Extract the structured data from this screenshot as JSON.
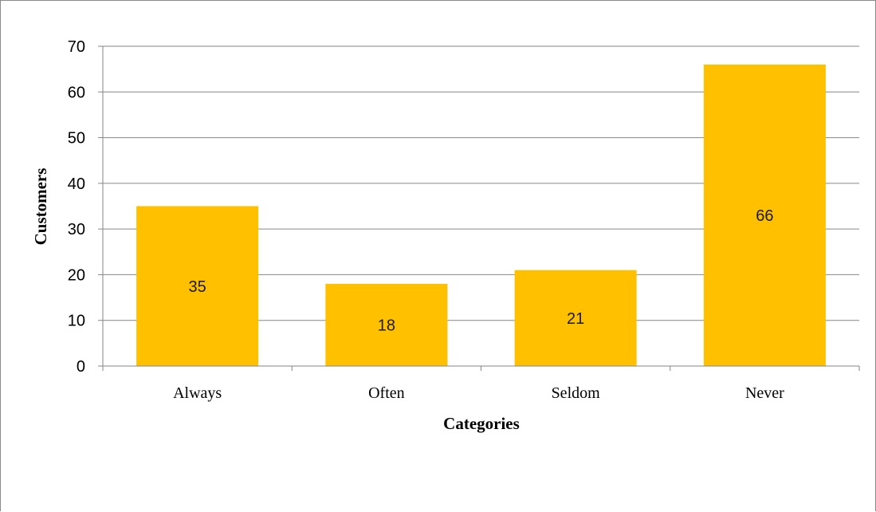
{
  "chart_data": {
    "type": "bar",
    "categories": [
      "Always",
      "Often",
      "Seldom",
      "Never"
    ],
    "values": [
      35,
      18,
      21,
      66
    ],
    "data_labels": [
      "35",
      "18",
      "21",
      "66"
    ],
    "title": "",
    "xlabel": "Categories",
    "ylabel": "Customers",
    "ylim": [
      0,
      70
    ],
    "yticks": [
      "0",
      "10",
      "20",
      "30",
      "40",
      "50",
      "60",
      "70"
    ],
    "grid": true,
    "legend": "none",
    "colors": {
      "bar": "#FFC000",
      "grid": "#868686",
      "axis": "#868686"
    }
  }
}
